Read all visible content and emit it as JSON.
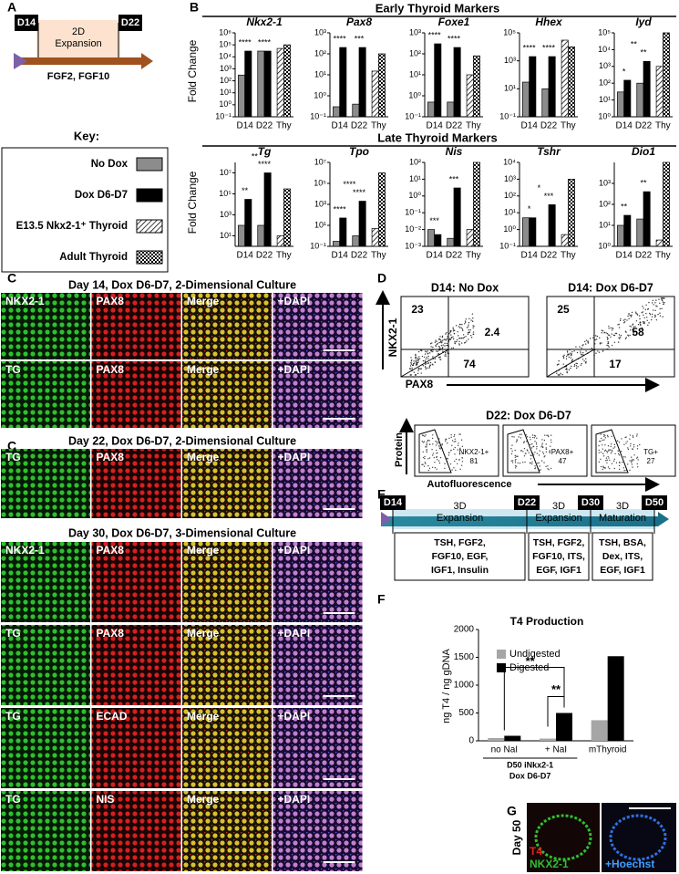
{
  "panel_a": {
    "letter": "A",
    "start": "D14",
    "end": "D22",
    "stage": [
      "2D",
      "Expansion"
    ],
    "factors": "FGF2, FGF10"
  },
  "key": {
    "title": "Key:",
    "entries": [
      {
        "name": "No Dox",
        "color": "#8c8c8c"
      },
      {
        "name": "Dox D6-D7",
        "color": "#000000"
      },
      {
        "name": "E13.5 Nkx2-1⁺ Thyroid",
        "fill": "hatch"
      },
      {
        "name": "Adult Thyroid",
        "fill": "checker"
      }
    ]
  },
  "panel_b": {
    "letter": "B",
    "row_titles": [
      "Early Thyroid Markers",
      "Late Thyroid Markers"
    ],
    "ylabel": "Fold Change"
  },
  "chart_data": [
    {
      "type": "bar",
      "log": true,
      "title": "Nkx2-1",
      "categories": [
        "D14",
        "D22",
        "Thy"
      ],
      "series": [
        {
          "values": [
            300,
            30000,
            null
          ]
        },
        {
          "values": [
            30000,
            30000,
            null
          ]
        },
        {
          "values": [
            null,
            null,
            50000
          ]
        },
        {
          "values": [
            null,
            null,
            100000
          ]
        }
      ],
      "ylim": [
        0.1,
        1000000
      ],
      "yticks": [
        {
          "value": 1000000,
          "label": "10⁶"
        },
        {
          "value": 100000,
          "label": "10⁵"
        },
        {
          "value": 10000,
          "label": "10⁴"
        },
        {
          "value": 1000,
          "label": "10³"
        },
        {
          "value": 100,
          "label": "10²"
        },
        {
          "value": 10,
          "label": "10¹"
        },
        {
          "value": 1,
          "label": "10⁰"
        },
        {
          "value": 0.1,
          "label": "10⁻¹"
        }
      ],
      "annotations": [
        "****",
        "****"
      ]
    },
    {
      "type": "bar",
      "log": true,
      "title": "Pax8",
      "categories": [
        "D14",
        "D22",
        "Thy"
      ],
      "series": [
        {
          "values": [
            0.3,
            0.4,
            null
          ]
        },
        {
          "values": [
            200,
            200,
            null
          ]
        },
        {
          "values": [
            null,
            null,
            15
          ]
        },
        {
          "values": [
            null,
            null,
            100
          ]
        }
      ],
      "ylim": [
        0.1,
        1000
      ],
      "yticks": [
        {
          "value": 1000,
          "label": "10³"
        },
        {
          "value": 100,
          "label": "10²"
        },
        {
          "value": 10,
          "label": "10¹"
        },
        {
          "value": 1,
          "label": "10⁰"
        },
        {
          "value": 0.1,
          "label": "10⁻¹"
        }
      ],
      "annotations": [
        "****",
        "***"
      ]
    },
    {
      "type": "bar",
      "log": true,
      "title": "Foxe1",
      "categories": [
        "D14",
        "D22",
        "Thy"
      ],
      "series": [
        {
          "values": [
            0.5,
            0.5,
            null
          ]
        },
        {
          "values": [
            300,
            200,
            null
          ]
        },
        {
          "values": [
            null,
            null,
            10
          ]
        },
        {
          "values": [
            null,
            null,
            80
          ]
        }
      ],
      "ylim": [
        0.1,
        1000
      ],
      "yticks": [
        {
          "value": 1000,
          "label": "10³"
        },
        {
          "value": 100,
          "label": "10²"
        },
        {
          "value": 10,
          "label": "10¹"
        },
        {
          "value": 1,
          "label": "10⁰"
        },
        {
          "value": 0.1,
          "label": "10⁻¹"
        }
      ],
      "annotations": [
        "****",
        "****"
      ]
    },
    {
      "type": "bar",
      "log": true,
      "title": "Hhex",
      "categories": [
        "D14",
        "D22",
        "Thy"
      ],
      "series": [
        {
          "values": [
            30,
            10,
            null
          ]
        },
        {
          "values": [
            2000,
            2000,
            null
          ]
        },
        {
          "values": [
            null,
            null,
            30000
          ]
        },
        {
          "values": [
            null,
            null,
            10000
          ]
        }
      ],
      "ylim": [
        0.1,
        100000
      ],
      "yticks": [
        {
          "value": 100000,
          "label": "10⁵"
        },
        {
          "value": 1000,
          "label": "10³"
        },
        {
          "value": 10,
          "label": "10¹"
        },
        {
          "value": 0.1,
          "label": "10⁻¹"
        }
      ],
      "annotations": [
        "****",
        "****"
      ]
    },
    {
      "type": "bar",
      "log": true,
      "title": "Iyd",
      "categories": [
        "D14",
        "D22",
        "Thy"
      ],
      "series": [
        {
          "values": [
            30,
            100,
            null
          ]
        },
        {
          "values": [
            150,
            2000,
            null
          ]
        },
        {
          "values": [
            null,
            null,
            1000
          ]
        },
        {
          "values": [
            null,
            null,
            100000
          ]
        }
      ],
      "ylim": [
        1,
        100000
      ],
      "yticks": [
        {
          "value": 100000,
          "label": "10⁵"
        },
        {
          "value": 10000,
          "label": "10⁴"
        },
        {
          "value": 1000,
          "label": "10³"
        },
        {
          "value": 100,
          "label": "10²"
        },
        {
          "value": 10,
          "label": "10¹"
        },
        {
          "value": 1,
          "label": "10⁰"
        }
      ],
      "annotations": [
        "*",
        "**",
        "**"
      ]
    },
    {
      "type": "bar",
      "log": true,
      "title": "Tg",
      "categories": [
        "D14",
        "D22",
        "Thy"
      ],
      "series": [
        {
          "values": [
            100,
            100,
            null
          ]
        },
        {
          "values": [
            30000,
            10000000,
            null
          ]
        },
        {
          "values": [
            null,
            null,
            10
          ]
        },
        {
          "values": [
            null,
            null,
            300000
          ]
        }
      ],
      "ylim": [
        1,
        100000000
      ],
      "yticks": [
        {
          "value": 10000000,
          "label": "10⁷"
        },
        {
          "value": 100000,
          "label": "10⁵"
        },
        {
          "value": 1000,
          "label": "10³"
        },
        {
          "value": 10,
          "label": "10¹"
        }
      ],
      "annotations": [
        "**",
        "****",
        "**"
      ]
    },
    {
      "type": "bar",
      "log": true,
      "title": "Tpo",
      "categories": [
        "D14",
        "D22",
        "Thy"
      ],
      "series": [
        {
          "values": [
            0.3,
            1,
            null
          ]
        },
        {
          "values": [
            50,
            2000,
            null
          ]
        },
        {
          "values": [
            null,
            null,
            5
          ]
        },
        {
          "values": [
            null,
            null,
            1000000
          ]
        }
      ],
      "ylim": [
        0.1,
        10000000
      ],
      "yticks": [
        {
          "value": 10000000,
          "label": "10⁷"
        },
        {
          "value": 100000,
          "label": "10⁵"
        },
        {
          "value": 1000,
          "label": "10³"
        },
        {
          "value": 10,
          "label": "10¹"
        },
        {
          "value": 0.1,
          "label": "10⁻¹"
        }
      ],
      "annotations": [
        "****",
        "****",
        "****"
      ]
    },
    {
      "type": "bar",
      "log": true,
      "title": "Nis",
      "categories": [
        "D14",
        "D22",
        "Thy"
      ],
      "series": [
        {
          "values": [
            0.01,
            0.003,
            null
          ]
        },
        {
          "values": [
            0.005,
            3,
            null
          ]
        },
        {
          "values": [
            null,
            null,
            0.01
          ]
        },
        {
          "values": [
            null,
            null,
            100
          ]
        }
      ],
      "ylim": [
        0.001,
        100
      ],
      "yticks": [
        {
          "value": 100,
          "label": "10²"
        },
        {
          "value": 10,
          "label": "10¹"
        },
        {
          "value": 1,
          "label": "10⁰"
        },
        {
          "value": 0.1,
          "label": "10⁻¹"
        },
        {
          "value": 0.01,
          "label": "10⁻²"
        },
        {
          "value": 0.001,
          "label": "10⁻³"
        }
      ],
      "annotations": [
        "***",
        "***"
      ]
    },
    {
      "type": "bar",
      "log": true,
      "title": "Tshr",
      "categories": [
        "D14",
        "D22",
        "Thy"
      ],
      "series": [
        {
          "values": [
            5,
            0.1,
            null
          ]
        },
        {
          "values": [
            5,
            30,
            null
          ]
        },
        {
          "values": [
            null,
            null,
            0.5
          ]
        },
        {
          "values": [
            null,
            null,
            1000
          ]
        }
      ],
      "ylim": [
        0.1,
        10000
      ],
      "yticks": [
        {
          "value": 10000,
          "label": "10⁴"
        },
        {
          "value": 1000,
          "label": "10³"
        },
        {
          "value": 100,
          "label": "10²"
        },
        {
          "value": 10,
          "label": "10¹"
        },
        {
          "value": 1,
          "label": "10⁰"
        },
        {
          "value": 0.1,
          "label": "10⁻¹"
        }
      ],
      "annotations": [
        "*",
        "***",
        "*"
      ]
    },
    {
      "type": "bar",
      "log": true,
      "title": "Dio1",
      "categories": [
        "D14",
        "D22",
        "Thy"
      ],
      "series": [
        {
          "values": [
            10,
            20,
            null
          ]
        },
        {
          "values": [
            30,
            400,
            null
          ]
        },
        {
          "values": [
            null,
            null,
            2
          ]
        },
        {
          "values": [
            null,
            null,
            10000
          ]
        }
      ],
      "ylim": [
        1,
        10000
      ],
      "yticks": [
        {
          "value": 1000,
          "label": "10³"
        },
        {
          "value": 100,
          "label": "10²"
        },
        {
          "value": 10,
          "label": "10¹"
        },
        {
          "value": 1,
          "label": "10⁰"
        }
      ],
      "annotations": [
        "**",
        "**"
      ]
    },
    {
      "type": "bar",
      "letter": "F",
      "title": "T4 Production",
      "ylabel": "ng T4 / ng gDNA",
      "categories": [
        "no NaI",
        "+ NaI",
        "mThyroid"
      ],
      "series": [
        {
          "name": "Undigested",
          "color": "#a6a6a6",
          "values": [
            50,
            40,
            370
          ]
        },
        {
          "name": "Digested",
          "color": "#000000",
          "values": [
            90,
            500,
            1520
          ]
        }
      ],
      "ylim": [
        0,
        2000
      ],
      "yticks": [
        0,
        500,
        1000,
        1500,
        2000
      ],
      "group_label": [
        "D50 iNkx2-1",
        "Dox D6-D7"
      ],
      "annotations": [
        "**",
        "**"
      ]
    }
  ],
  "panel_c": {
    "letter": "C",
    "sections": [
      {
        "title": "Day 14, Dox D6-D7, 2-Dimensional Culture",
        "rows": [
          [
            "NKX2-1",
            "PAX8",
            "Merge",
            "+DAPI"
          ],
          [
            "TG",
            "PAX8",
            "Merge",
            "+DAPI"
          ]
        ]
      },
      {
        "title": "Day 22, Dox D6-D7, 2-Dimensional Culture",
        "rows": [
          [
            "TG",
            "PAX8",
            "Merge",
            "+DAPI"
          ]
        ]
      },
      {
        "title": "Day 30, Dox D6-D7, 3-Dimensional Culture",
        "rows": [
          [
            "NKX2-1",
            "PAX8",
            "Merge",
            "+DAPI"
          ],
          [
            "TG",
            "PAX8",
            "Merge",
            "+DAPI"
          ],
          [
            "TG",
            "ECAD",
            "Merge",
            "+DAPI"
          ],
          [
            "TG",
            "NIS",
            "Merge",
            "+DAPI"
          ]
        ]
      }
    ]
  },
  "panel_d": {
    "letter": "D",
    "plots": [
      {
        "title": "D14: No Dox",
        "quadrants": [
          23,
          2.4,
          74
        ]
      },
      {
        "title": "D14: Dox D6-D7",
        "quadrants": [
          25,
          58,
          17
        ]
      }
    ],
    "yaxis": "NKX2-1",
    "xaxis": "PAX8",
    "sub_title": "D22: Dox D6-D7",
    "sub_yaxis": "Protein",
    "sub_xaxis": "Autofluorescence",
    "gates": [
      {
        "name": "NKX2-1+",
        "value": 81
      },
      {
        "name": "PAX8+",
        "value": 47
      },
      {
        "name": "TG+",
        "value": 27
      }
    ]
  },
  "panel_e": {
    "letter": "E",
    "days": [
      "D14",
      "D22",
      "D30",
      "D50"
    ],
    "stages": [
      [
        "3D",
        "Expansion"
      ],
      [
        "3D",
        "Expansion"
      ],
      [
        "3D",
        "Maturation"
      ]
    ],
    "media": [
      [
        "TSH, FGF2,",
        "FGF10, EGF,",
        "IGF1, Insulin"
      ],
      [
        "TSH, FGF2,",
        "FGF10, ITS,",
        "EGF, IGF1"
      ],
      [
        "TSH, BSA,",
        "Dex, ITS,",
        "EGF, IGF1"
      ]
    ]
  },
  "panel_g": {
    "letter": "G",
    "side": "Day 50",
    "stains": [
      "T4",
      "NKX2-1"
    ],
    "counter": "+Hoechst"
  }
}
